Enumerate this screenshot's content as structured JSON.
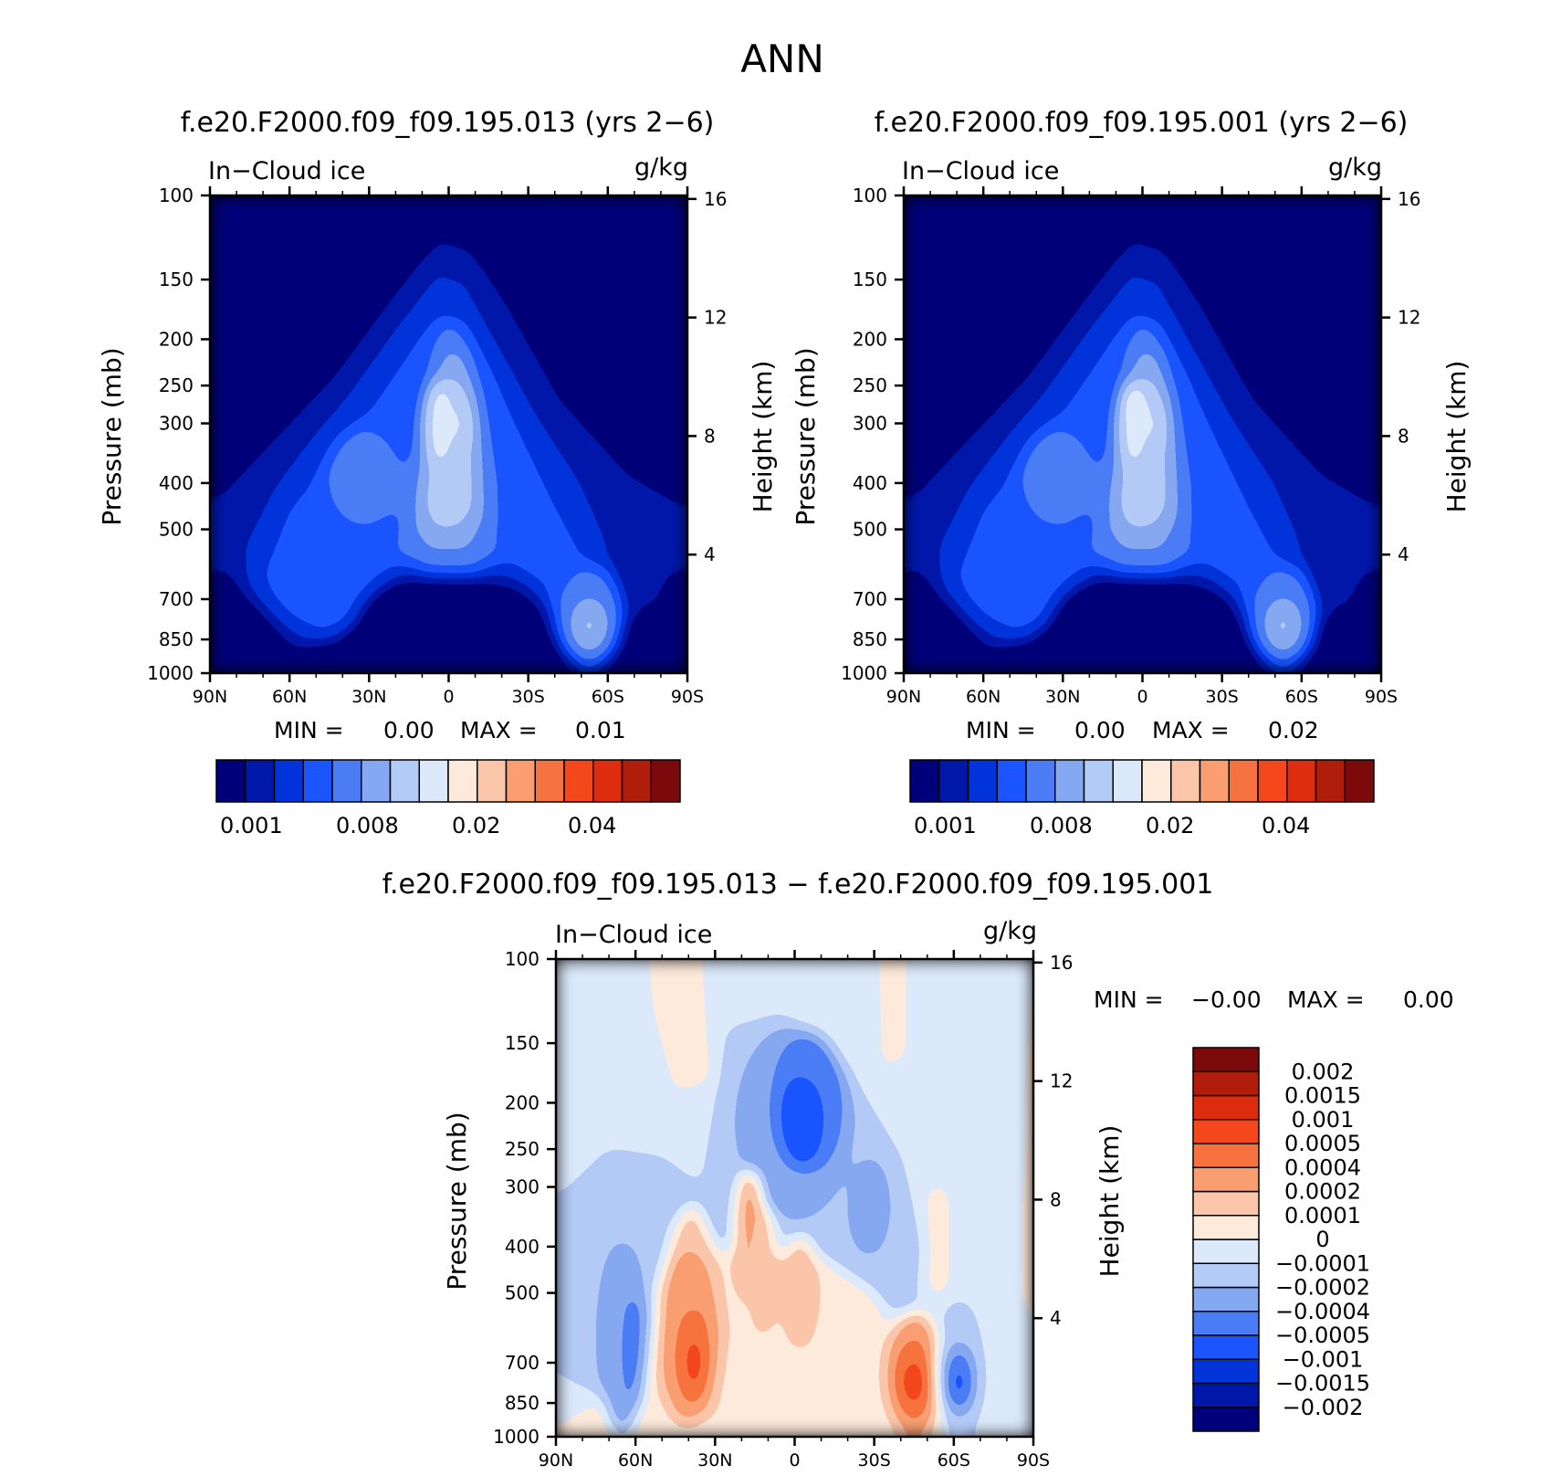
{
  "figure": {
    "title": "ANN",
    "colors": {
      "abs_levels": [
        "#00007a",
        "#0018aa",
        "#0033d9",
        "#1a55ff",
        "#4a7df5",
        "#85a8f2",
        "#b3cbf7",
        "#dbe9fb",
        "#feeadb",
        "#fcc6aa",
        "#fa9e72",
        "#f6733f",
        "#f4471c",
        "#dd2c0e",
        "#b01d0a",
        "#7c0a0a"
      ],
      "diff_levels": [
        "#00007a",
        "#0018aa",
        "#0033d9",
        "#1a55ff",
        "#4a7df5",
        "#85a8f2",
        "#b3cbf7",
        "#dbe9fb",
        "#feeadb",
        "#fcc6aa",
        "#fa9e72",
        "#f6733f",
        "#f4471c",
        "#dd2c0e",
        "#b01d0a",
        "#7c0a0a"
      ]
    }
  },
  "chart_data": [
    {
      "id": "panel_a",
      "type": "heatmap",
      "title": "f.e20.F2000.f09_f09.195.013 (yrs 2−6)",
      "variable": "In−Cloud ice",
      "units": "g/kg",
      "xlabel": "",
      "ylabel": "Pressure (mb)",
      "ylabel_right": "Height (km)",
      "x_ticks": [
        "90N",
        "60N",
        "30N",
        "0",
        "30S",
        "60S",
        "90S"
      ],
      "y_ticks": [
        "100",
        "150",
        "200",
        "250",
        "300",
        "400",
        "500",
        "700",
        "850",
        "1000"
      ],
      "y2_ticks": [
        "16",
        "12",
        "8",
        "4"
      ],
      "ylim": [
        100,
        1000
      ],
      "min_label": "MIN =",
      "min_value": "0.00",
      "max_label": "MAX =",
      "max_value": "0.01",
      "colorbar_labels": [
        "0.001",
        "0.008",
        "0.02",
        "0.04"
      ],
      "levels": 16,
      "features": [
        {
          "lat": 0,
          "p": 290,
          "level": 7,
          "note": "tropical upper-troposphere maximum"
        },
        {
          "lat": 32,
          "p": 380,
          "level": 4,
          "note": "NH midlatitude maximum"
        },
        {
          "lat": -53,
          "p": 780,
          "level": 5,
          "note": "SH low-level maximum"
        }
      ]
    },
    {
      "id": "panel_b",
      "type": "heatmap",
      "title": "f.e20.F2000.f09_f09.195.001 (yrs 2−6)",
      "variable": "In−Cloud ice",
      "units": "g/kg",
      "xlabel": "",
      "ylabel": "Pressure (mb)",
      "ylabel_right": "Height (km)",
      "x_ticks": [
        "90N",
        "60N",
        "30N",
        "0",
        "30S",
        "60S",
        "90S"
      ],
      "y_ticks": [
        "100",
        "150",
        "200",
        "250",
        "300",
        "400",
        "500",
        "700",
        "850",
        "1000"
      ],
      "y2_ticks": [
        "16",
        "12",
        "8",
        "4"
      ],
      "ylim": [
        100,
        1000
      ],
      "min_label": "MIN =",
      "min_value": "0.00",
      "max_label": "MAX =",
      "max_value": "0.02",
      "colorbar_labels": [
        "0.001",
        "0.008",
        "0.02",
        "0.04"
      ],
      "levels": 16,
      "features": [
        {
          "lat": 2,
          "p": 280,
          "level": 8,
          "note": "tropical upper-troposphere maximum"
        },
        {
          "lat": 32,
          "p": 380,
          "level": 4,
          "note": "NH midlatitude maximum"
        },
        {
          "lat": -53,
          "p": 780,
          "level": 5,
          "note": "SH low-level maximum"
        }
      ]
    },
    {
      "id": "panel_diff",
      "type": "heatmap",
      "title": "f.e20.F2000.f09_f09.195.013 − f.e20.F2000.f09_f09.195.001",
      "variable": "In−Cloud ice",
      "units": "g/kg",
      "xlabel": "",
      "ylabel": "Pressure (mb)",
      "ylabel_right": "Height (km)",
      "x_ticks": [
        "90N",
        "60N",
        "30N",
        "0",
        "30S",
        "60S",
        "90S"
      ],
      "y_ticks": [
        "100",
        "150",
        "200",
        "250",
        "300",
        "400",
        "500",
        "700",
        "850",
        "1000"
      ],
      "y2_ticks": [
        "16",
        "12",
        "8",
        "4"
      ],
      "ylim": [
        100,
        1000
      ],
      "min_label": "MIN =",
      "min_value": "−0.00",
      "max_label": "MAX =",
      "max_value": "0.00",
      "colorbar_labels": [
        "0.002",
        "0.0015",
        "0.001",
        "0.0005",
        "0.0004",
        "0.0002",
        "0.0001",
        "0",
        "−0.0001",
        "−0.0002",
        "−0.0004",
        "−0.0005",
        "−0.001",
        "−0.0015",
        "−0.002"
      ],
      "levels": 16,
      "features": [
        {
          "lat": -2,
          "p": 220,
          "value": -0.001,
          "note": "tropical upper-level negative"
        },
        {
          "lat": 40,
          "p": 700,
          "value": 0.0005,
          "note": "NH low-level positive"
        },
        {
          "lat": -45,
          "p": 760,
          "value": 0.0005,
          "note": "SH low-level positive"
        },
        {
          "lat": -60,
          "p": 760,
          "value": -0.0005,
          "note": "SH low-level negative"
        }
      ]
    }
  ]
}
